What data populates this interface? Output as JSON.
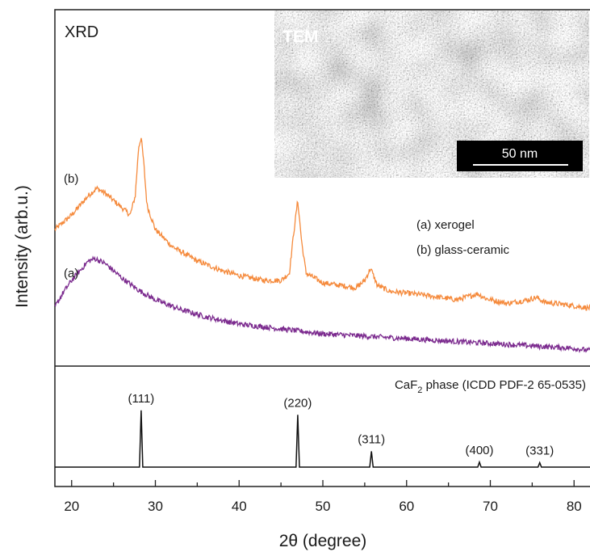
{
  "chart_data": {
    "type": "line",
    "panel_label": "XRD",
    "xlabel": "2θ (degree)",
    "ylabel": "Intensity (arb.u.)",
    "xlim": [
      18,
      82
    ],
    "xticks": [
      "20",
      "30",
      "40",
      "50",
      "60",
      "70",
      "80"
    ],
    "grid": false,
    "legend": {
      "placement": "right",
      "entries": [
        "(a) xerogel",
        "(b) glass-ceramic"
      ]
    },
    "series": [
      {
        "name": "(b)",
        "color": "#f58a3c",
        "x": [
          18,
          20,
          22,
          23,
          24,
          25,
          26,
          27,
          27.6,
          28.0,
          28.3,
          28.6,
          29.0,
          30,
          32,
          35,
          38,
          40,
          43,
          45,
          46,
          46.5,
          47.0,
          47.5,
          48,
          50,
          52,
          54,
          55,
          55.7,
          56.5,
          58,
          62,
          66,
          67.5,
          68.5,
          69.5,
          72,
          74.5,
          75.5,
          76.5,
          79,
          82
        ],
        "y": [
          0.52,
          0.58,
          0.66,
          0.69,
          0.67,
          0.64,
          0.61,
          0.58,
          0.66,
          0.86,
          0.9,
          0.8,
          0.62,
          0.52,
          0.45,
          0.39,
          0.35,
          0.33,
          0.31,
          0.31,
          0.34,
          0.5,
          0.64,
          0.46,
          0.34,
          0.3,
          0.29,
          0.28,
          0.31,
          0.36,
          0.29,
          0.265,
          0.25,
          0.23,
          0.245,
          0.255,
          0.235,
          0.215,
          0.23,
          0.24,
          0.22,
          0.21,
          0.195
        ]
      },
      {
        "name": "(a)",
        "color": "#7b2a8e",
        "x": [
          18,
          19,
          20,
          21,
          22,
          22.8,
          24,
          25,
          26,
          28,
          30,
          33,
          36,
          40,
          45,
          50,
          55,
          60,
          65,
          70,
          75,
          80,
          82
        ],
        "y": [
          0.2,
          0.26,
          0.31,
          0.35,
          0.39,
          0.4,
          0.38,
          0.35,
          0.32,
          0.27,
          0.23,
          0.19,
          0.16,
          0.13,
          0.11,
          0.09,
          0.08,
          0.07,
          0.06,
          0.05,
          0.04,
          0.03,
          0.02
        ]
      }
    ],
    "reference": {
      "title_pre": "CaF",
      "title_sub": "2",
      "title_post": " phase (ICDD PDF-2 65-0535)",
      "peaks": [
        {
          "x": 28.3,
          "label": "(111)",
          "height": 0.9
        },
        {
          "x": 47.0,
          "label": "(220)",
          "height": 0.83
        },
        {
          "x": 55.8,
          "label": "(311)",
          "height": 0.25
        },
        {
          "x": 68.7,
          "label": "(400)",
          "height": 0.08
        },
        {
          "x": 75.9,
          "label": "(331)",
          "height": 0.07
        }
      ]
    },
    "inset": {
      "label": "TEM",
      "scale_bar": "50 nm"
    }
  }
}
